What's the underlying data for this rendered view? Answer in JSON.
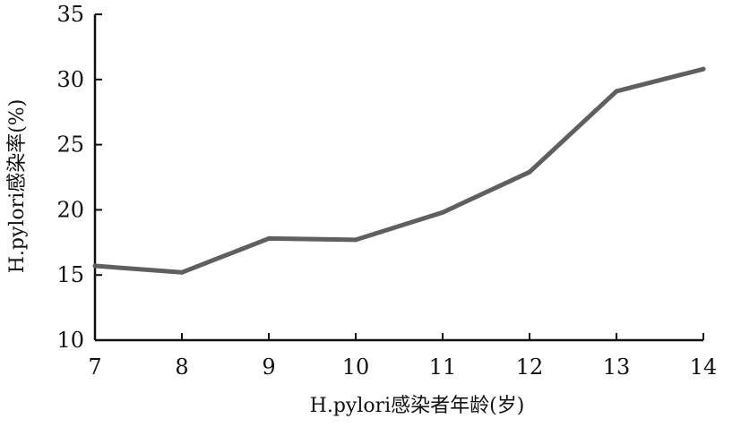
{
  "chart_data": {
    "type": "line",
    "x": [
      7,
      8,
      9,
      10,
      11,
      12,
      13,
      14
    ],
    "series": [
      {
        "values": [
          15.7,
          15.2,
          17.8,
          17.7,
          19.8,
          22.9,
          29.1,
          30.8
        ],
        "color": "#5f5f5f"
      }
    ],
    "xlabel": "H.pylori感染者年龄(岁)",
    "ylabel": "H.pylori感染率(%)",
    "xlim": [
      7,
      14
    ],
    "ylim": [
      10,
      35
    ],
    "xticks": [
      "7",
      "8",
      "9",
      "10",
      "11",
      "12",
      "13",
      "14"
    ],
    "yticks": [
      "10",
      "15",
      "20",
      "25",
      "30",
      "35"
    ],
    "grid": false
  }
}
